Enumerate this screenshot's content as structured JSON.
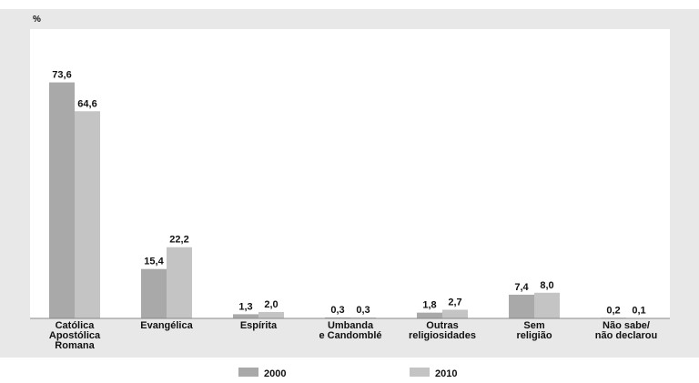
{
  "chart_data": {
    "type": "bar",
    "unit_label": "%",
    "categories": [
      [
        "Católica",
        "Apostólica",
        "Romana"
      ],
      [
        "Evangélica"
      ],
      [
        "Espírita"
      ],
      [
        "Umbanda",
        "e Candomblé"
      ],
      [
        "Outras",
        "religiosidades"
      ],
      [
        "Sem",
        "religião"
      ],
      [
        "Não sabe/",
        "não declarou"
      ]
    ],
    "series": [
      {
        "name": "2000",
        "color": "#a9a9a9",
        "values": [
          73.6,
          15.4,
          1.3,
          0.3,
          1.8,
          7.4,
          0.2
        ],
        "labels": [
          "73,6",
          "15,4",
          "1,3",
          "0,3",
          "1,8",
          "7,4",
          "0,2"
        ]
      },
      {
        "name": "2010",
        "color": "#c4c4c4",
        "values": [
          64.6,
          22.2,
          2.0,
          0.3,
          2.7,
          8.0,
          0.1
        ],
        "labels": [
          "64,6",
          "22,2",
          "2,0",
          "0,3",
          "2,7",
          "8,0",
          "0,1"
        ]
      }
    ],
    "ylim": [
      0,
      80
    ],
    "legend_position": "bottom"
  }
}
